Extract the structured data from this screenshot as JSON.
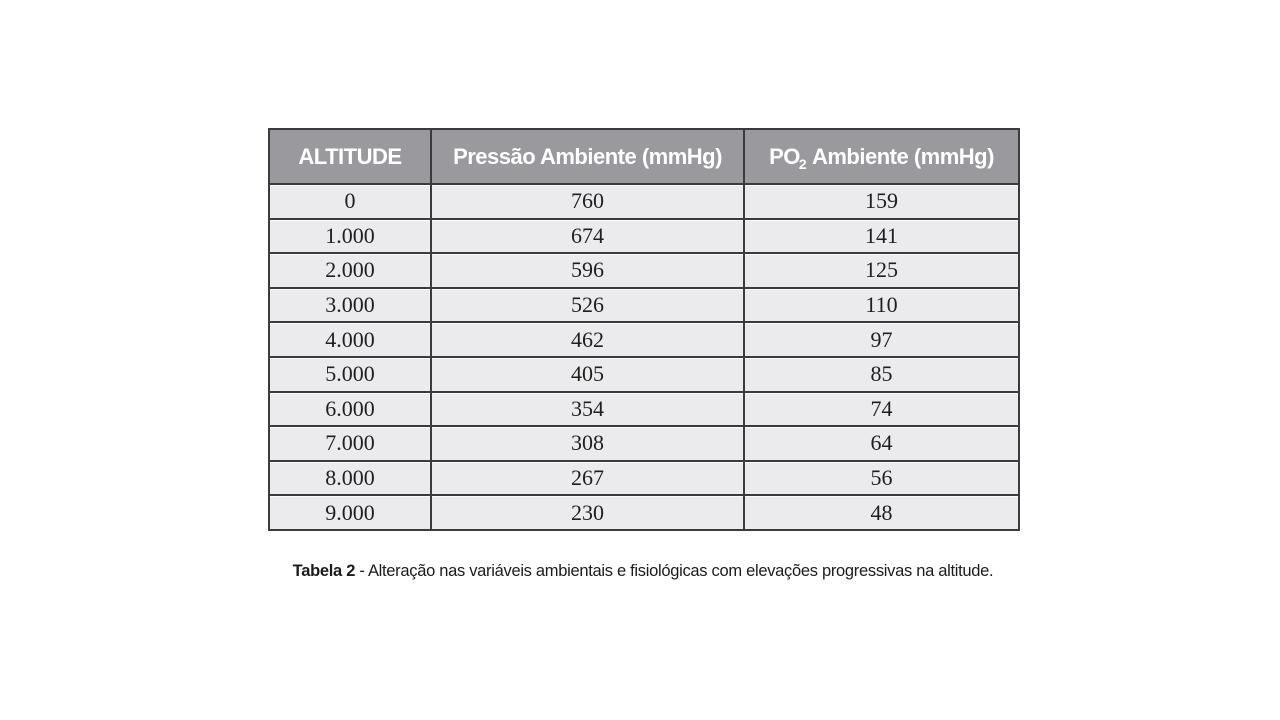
{
  "colors": {
    "header_bg": "#9a999e",
    "row_bg": "#ebebed",
    "border": "#3b3a3f",
    "header_text": "#ffffff",
    "body_text": "#1f1f1f",
    "page_bg": "#ffffff"
  },
  "table": {
    "headers": {
      "col1": "ALTITUDE",
      "col2": "Pressão Ambiente (mmHg)",
      "col3_prefix": "PO",
      "col3_sub": "2",
      "col3_suffix": " Ambiente (mmHg)"
    },
    "rows": [
      [
        "0",
        "760",
        "159"
      ],
      [
        "1.000",
        "674",
        "141"
      ],
      [
        "2.000",
        "596",
        "125"
      ],
      [
        "3.000",
        "526",
        "110"
      ],
      [
        "4.000",
        "462",
        "97"
      ],
      [
        "5.000",
        "405",
        "85"
      ],
      [
        "6.000",
        "354",
        "74"
      ],
      [
        "7.000",
        "308",
        "64"
      ],
      [
        "8.000",
        "267",
        "56"
      ],
      [
        "9.000",
        "230",
        "48"
      ]
    ]
  },
  "caption": {
    "label": "Tabela 2",
    "text": " - Alteração nas variáveis ambientais e fisiológicas com elevações progressivas na altitude."
  },
  "chart_data": {
    "type": "table",
    "title": "Tabela 2 - Alteração nas variáveis ambientais e fisiológicas com elevações progressivas na altitude.",
    "columns": [
      "ALTITUDE",
      "Pressão Ambiente (mmHg)",
      "PO2 Ambiente (mmHg)"
    ],
    "rows": [
      [
        0,
        760,
        159
      ],
      [
        1000,
        674,
        141
      ],
      [
        2000,
        596,
        125
      ],
      [
        3000,
        526,
        110
      ],
      [
        4000,
        462,
        97
      ],
      [
        5000,
        405,
        85
      ],
      [
        6000,
        354,
        74
      ],
      [
        7000,
        308,
        64
      ],
      [
        8000,
        267,
        56
      ],
      [
        9000,
        230,
        48
      ]
    ]
  }
}
